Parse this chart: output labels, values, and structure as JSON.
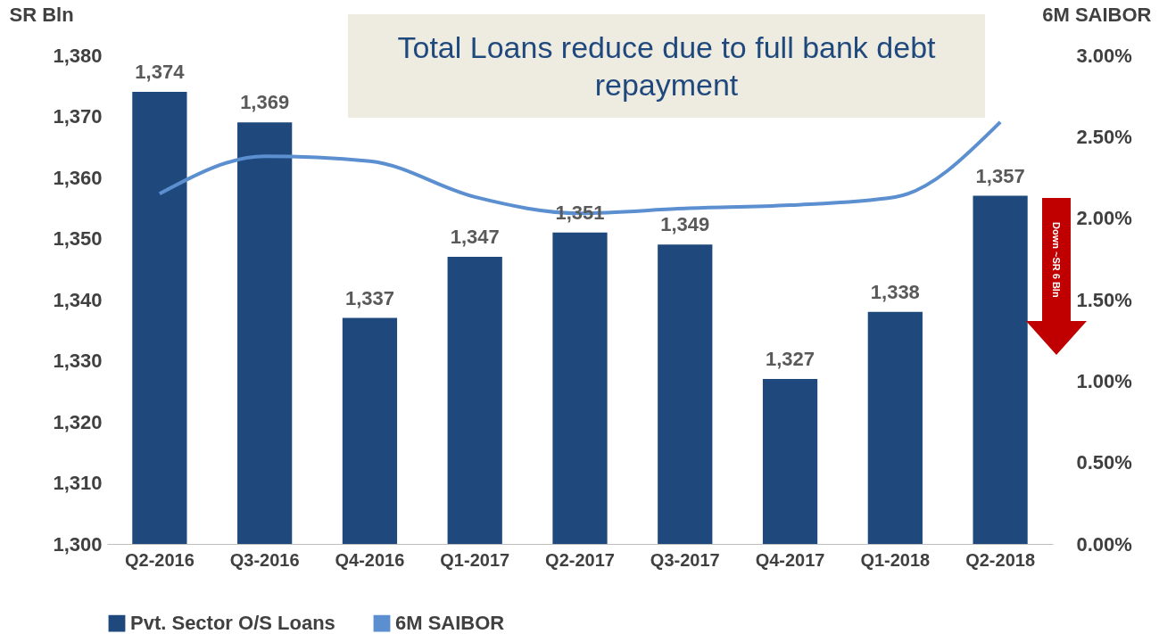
{
  "chart_data": {
    "type": "bar",
    "title": "Total Loans reduce due to full bank debt repayment",
    "ylabel": "SR Bln",
    "y2label": "6M SAIBOR",
    "categories": [
      "Q2-2016",
      "Q3-2016",
      "Q4-2016",
      "Q1-2017",
      "Q2-2017",
      "Q3-2017",
      "Q4-2017",
      "Q1-2018",
      "Q2-2018"
    ],
    "series": [
      {
        "name": "Pvt. Sector O/S Loans",
        "color": "#1f497d",
        "values": [
          1374,
          1369,
          1337,
          1347,
          1351,
          1349,
          1327,
          1338,
          1357
        ],
        "value_labels": [
          "1,374",
          "1,369",
          "1,337",
          "1,347",
          "1,351",
          "1,349",
          "1,327",
          "1,338",
          "1,357"
        ]
      },
      {
        "name": "6M SAIBOR",
        "type": "line",
        "axis": "y2",
        "color": "#5b8fd0",
        "values": [
          2.15,
          2.38,
          2.35,
          2.13,
          2.03,
          2.06,
          2.08,
          2.13,
          2.59
        ]
      }
    ],
    "ylim": [
      1300,
      1380
    ],
    "yticks": [
      {
        "value": 1300,
        "label": "1,300"
      },
      {
        "value": 1310,
        "label": "1,310"
      },
      {
        "value": 1320,
        "label": "1,320"
      },
      {
        "value": 1330,
        "label": "1,330"
      },
      {
        "value": 1340,
        "label": "1,340"
      },
      {
        "value": 1350,
        "label": "1,350"
      },
      {
        "value": 1360,
        "label": "1,360"
      },
      {
        "value": 1370,
        "label": "1,370"
      },
      {
        "value": 1380,
        "label": "1,380"
      }
    ],
    "y2lim": [
      0,
      3
    ],
    "y2ticks": [
      {
        "value": 0,
        "label": "0.00%"
      },
      {
        "value": 0.5,
        "label": "0.50%"
      },
      {
        "value": 1,
        "label": "1.00%"
      },
      {
        "value": 1.5,
        "label": "1.50%"
      },
      {
        "value": 2,
        "label": "2.00%"
      },
      {
        "value": 2.5,
        "label": "2.50%"
      },
      {
        "value": 3,
        "label": "3.00%"
      }
    ],
    "annotations": [
      "Down ~SR 6 Bln"
    ],
    "grid": false,
    "legend": "bottom",
    "marker": "none",
    "line_style": "solid"
  }
}
